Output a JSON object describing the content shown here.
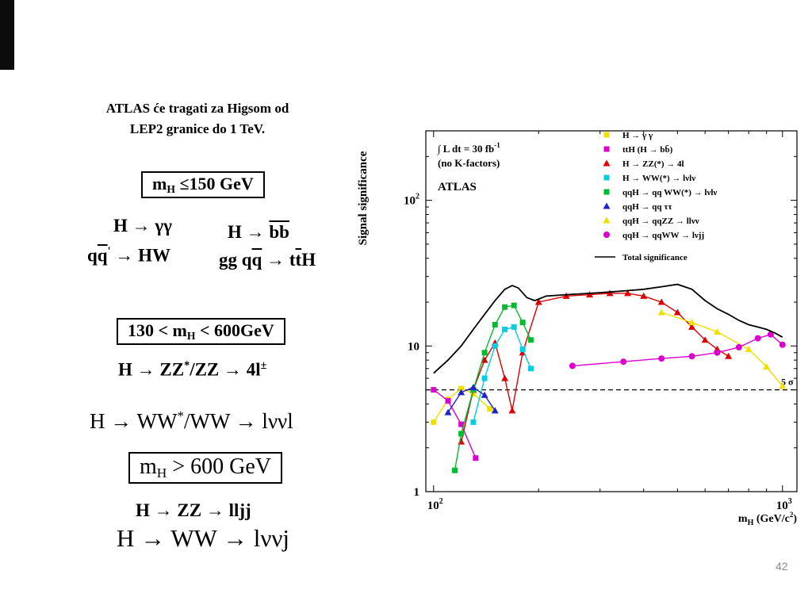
{
  "slide": {
    "title_line1": "ATLAS će tragati za Higsom od",
    "title_line2": "LEP2 granice do 1 TeV.",
    "page_number": "42"
  },
  "formulas": {
    "box_low_mass": [
      {
        "t": "m"
      },
      {
        "t": "H",
        "sub": true
      },
      {
        "t": " ≤150 GeV"
      }
    ],
    "h_gamma_gamma": [
      {
        "t": "H → γγ"
      }
    ],
    "h_bb": [
      {
        "t": "H → "
      },
      {
        "t": "bb",
        "over": true
      }
    ],
    "qq_hw": [
      {
        "t": "q"
      },
      {
        "t": "q",
        "over": true
      },
      {
        "t": "'",
        "sup": true
      },
      {
        "t": " → HW"
      }
    ],
    "gg_tth": [
      {
        "t": "gg q"
      },
      {
        "t": "q",
        "over": true
      },
      {
        "t": " → t"
      },
      {
        "t": "t",
        "over": true
      },
      {
        "t": "H"
      }
    ],
    "box_mid_mass": [
      {
        "t": "130 < m"
      },
      {
        "t": "H",
        "sub": true
      },
      {
        "t": " < 600GeV"
      }
    ],
    "h_zz_4l": [
      {
        "t": "H → ZZ"
      },
      {
        "t": "*",
        "sup": true
      },
      {
        "t": "/ZZ → 4l"
      },
      {
        "t": "±",
        "sup": true
      }
    ],
    "h_ww_lvvl": [
      {
        "t": "H → WW"
      },
      {
        "t": "*",
        "sup": true
      },
      {
        "t": "/WW → lννl"
      }
    ],
    "box_high_mass": [
      {
        "t": "m"
      },
      {
        "t": "H",
        "sub": true
      },
      {
        "t": " > 600 GeV"
      }
    ],
    "h_zz_lljj": [
      {
        "t": "H → ZZ → lljj"
      }
    ],
    "h_ww_lvvj": [
      {
        "t": "H → WW → lννj"
      }
    ]
  },
  "chart_data": {
    "type": "line",
    "title": "",
    "xlabel": "m_H (GeV/c^2)",
    "ylabel": "Signal significance",
    "xscale": "log",
    "yscale": "log",
    "xlim": [
      95,
      1100
    ],
    "ylim": [
      1,
      300
    ],
    "x_ticks": [
      100,
      1000
    ],
    "y_ticks": [
      1,
      10,
      100
    ],
    "legend_position": "top-right",
    "annotations": {
      "lumi_main": "∫ L dt = 30 fb",
      "lumi_sup": "-1",
      "kfactors": "(no K-factors)",
      "experiment": "ATLAS",
      "five_sigma_label": "5 σ",
      "five_sigma_value": 5
    },
    "series": [
      {
        "name": "H → γ γ",
        "color": "#f0e000",
        "marker": "square",
        "x": [
          100,
          110,
          120,
          130,
          145
        ],
        "y": [
          3.0,
          4.3,
          5.1,
          4.7,
          3.7
        ]
      },
      {
        "name": "ttH (H → bb̄)",
        "color": "#dd00cc",
        "marker": "square",
        "x": [
          100,
          110,
          120,
          132
        ],
        "y": [
          5.0,
          4.2,
          2.9,
          1.7
        ]
      },
      {
        "name": "H → ZZ(*) → 4l",
        "color": "#dd0000",
        "marker": "triangle",
        "x": [
          120,
          130,
          140,
          150,
          160,
          168,
          180,
          200,
          240,
          280,
          320,
          360,
          400,
          450,
          500,
          550,
          600,
          650,
          700
        ],
        "y": [
          2.2,
          5.0,
          8.0,
          10.5,
          6.0,
          3.6,
          9.0,
          20,
          22,
          22.5,
          23,
          23,
          22,
          20,
          17,
          13.5,
          11,
          9.5,
          8.5
        ]
      },
      {
        "name": "H → WW(*) → lνlν",
        "color": "#00cfe0",
        "marker": "square",
        "x": [
          130,
          140,
          150,
          160,
          170,
          180,
          190
        ],
        "y": [
          3.0,
          6.0,
          10.0,
          13.0,
          13.5,
          9.5,
          7.0
        ]
      },
      {
        "name": "qqH → qq WW(*) → lνlν",
        "color": "#00bb30",
        "marker": "square",
        "x": [
          115,
          120,
          130,
          140,
          150,
          160,
          170,
          180,
          190
        ],
        "y": [
          1.4,
          2.5,
          5.0,
          9.0,
          14.0,
          18.5,
          19.0,
          14.5,
          11.0
        ]
      },
      {
        "name": "qqH → qq ττ",
        "color": "#2222cc",
        "marker": "triangle",
        "x": [
          110,
          120,
          130,
          140,
          150
        ],
        "y": [
          3.5,
          4.8,
          5.2,
          4.6,
          3.6
        ]
      },
      {
        "name": "qqH → qqZZ → llνν",
        "color": "#f0e000",
        "marker": "triangle",
        "x": [
          450,
          550,
          650,
          800,
          900,
          1000
        ],
        "y": [
          17,
          14.5,
          12.5,
          9.5,
          7.2,
          5.3
        ]
      },
      {
        "name": "qqH → qqWW → lνjj",
        "color": "#dd00cc",
        "marker": "circle",
        "x": [
          250,
          350,
          450,
          550,
          650,
          750,
          850,
          925,
          1000
        ],
        "y": [
          7.3,
          7.8,
          8.2,
          8.5,
          9.0,
          9.8,
          11.3,
          12.0,
          10.2
        ]
      },
      {
        "name": "Total significance",
        "color": "#000000",
        "marker": "line",
        "x": [
          100,
          110,
          120,
          130,
          140,
          150,
          160,
          168,
          175,
          185,
          195,
          210,
          240,
          280,
          320,
          360,
          400,
          450,
          500,
          550,
          600,
          650,
          700,
          750,
          800,
          850,
          900,
          950,
          1000
        ],
        "y": [
          6.5,
          8,
          10,
          13,
          16.5,
          20.5,
          24.5,
          26,
          25,
          21.5,
          20.5,
          22,
          22.5,
          23,
          23.5,
          24,
          24.5,
          25.5,
          26.5,
          24.5,
          20.5,
          18,
          16.5,
          15,
          14,
          13.5,
          13,
          12.3,
          11.5
        ]
      }
    ]
  }
}
